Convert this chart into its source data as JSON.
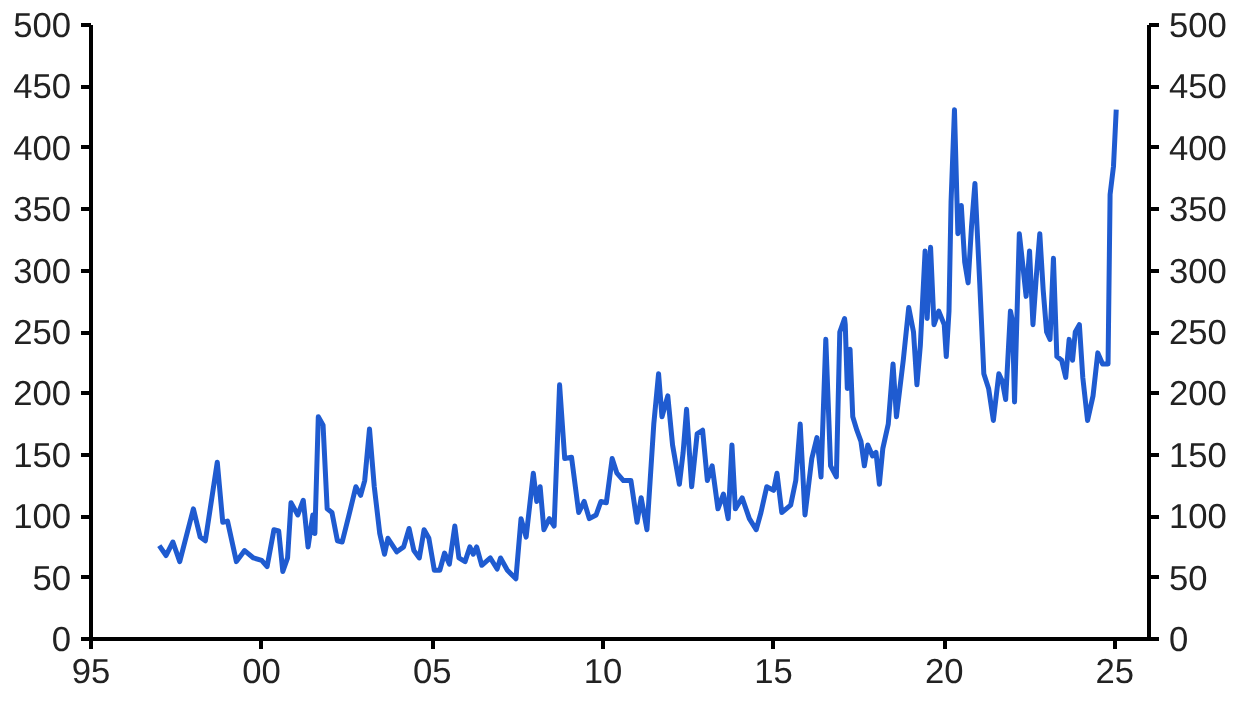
{
  "chart_data": {
    "type": "line",
    "color": "#1f5bd0",
    "x": [
      1997.0,
      1997.2,
      1997.4,
      1997.6,
      1998.0,
      1998.2,
      1998.35,
      1998.7,
      1998.86,
      1999.0,
      1999.26,
      1999.5,
      1999.76,
      2000.0,
      2000.16,
      2000.36,
      2000.5,
      2000.62,
      2000.76,
      2000.86,
      2001.06,
      2001.22,
      2001.36,
      2001.5,
      2001.56,
      2001.66,
      2001.8,
      2001.92,
      2002.06,
      2002.22,
      2002.36,
      2002.56,
      2002.76,
      2002.9,
      2003.02,
      2003.16,
      2003.3,
      2003.46,
      2003.6,
      2003.7,
      2003.96,
      2004.16,
      2004.32,
      2004.46,
      2004.62,
      2004.76,
      2004.9,
      2005.06,
      2005.22,
      2005.36,
      2005.5,
      2005.66,
      2005.78,
      2005.96,
      2006.1,
      2006.2,
      2006.3,
      2006.45,
      2006.7,
      2006.9,
      2007.0,
      2007.2,
      2007.45,
      2007.6,
      2007.75,
      2007.96,
      2008.06,
      2008.16,
      2008.27,
      2008.43,
      2008.57,
      2008.73,
      2008.88,
      2009.08,
      2009.29,
      2009.45,
      2009.6,
      2009.8,
      2009.94,
      2010.1,
      2010.27,
      2010.41,
      2010.6,
      2010.82,
      2011.0,
      2011.12,
      2011.29,
      2011.49,
      2011.63,
      2011.73,
      2011.9,
      2012.04,
      2012.24,
      2012.35,
      2012.45,
      2012.6,
      2012.76,
      2012.92,
      2013.06,
      2013.2,
      2013.37,
      2013.53,
      2013.67,
      2013.78,
      2013.88,
      2014.08,
      2014.29,
      2014.49,
      2014.63,
      2014.8,
      2015.0,
      2015.1,
      2015.24,
      2015.5,
      2015.65,
      2015.78,
      2015.92,
      2016.12,
      2016.27,
      2016.39,
      2016.53,
      2016.67,
      2016.84,
      2016.94,
      2017.08,
      2017.1,
      2017.16,
      2017.24,
      2017.32,
      2017.44,
      2017.56,
      2017.66,
      2017.76,
      2017.9,
      2018.0,
      2018.1,
      2018.2,
      2018.36,
      2018.5,
      2018.6,
      2018.7,
      2018.8,
      2018.96,
      2019.1,
      2019.2,
      2019.3,
      2019.44,
      2019.5,
      2019.6,
      2019.7,
      2019.84,
      2020.0,
      2020.06,
      2020.14,
      2020.2,
      2020.3,
      2020.4,
      2020.5,
      2020.6,
      2020.7,
      2020.8,
      2020.9,
      2021.04,
      2021.16,
      2021.3,
      2021.44,
      2021.6,
      2021.7,
      2021.8,
      2021.94,
      2022.0,
      2022.06,
      2022.2,
      2022.3,
      2022.4,
      2022.5,
      2022.6,
      2022.7,
      2022.8,
      2022.9,
      2023.0,
      2023.1,
      2023.2,
      2023.3,
      2023.44,
      2023.56,
      2023.66,
      2023.76,
      2023.84,
      2023.96,
      2024.06,
      2024.2,
      2024.36,
      2024.5,
      2024.64,
      2024.8,
      2024.86,
      2024.96,
      2025.04
    ],
    "values": [
      76,
      68,
      79,
      63,
      106,
      83,
      80,
      144,
      95,
      96,
      63,
      72,
      66,
      64,
      59,
      89,
      88,
      55,
      66,
      111,
      101,
      113,
      75,
      101,
      86,
      181,
      174,
      106,
      103,
      80,
      79,
      101,
      124,
      117,
      129,
      171,
      124,
      86,
      69,
      82,
      71,
      75,
      90,
      72,
      66,
      89,
      82,
      56,
      56,
      70,
      61,
      92,
      66,
      63,
      75,
      69,
      75,
      60,
      66,
      57,
      66,
      56,
      49,
      98,
      83,
      135,
      112,
      124,
      89,
      98,
      92,
      207,
      147,
      148,
      103,
      112,
      98,
      101,
      112,
      111,
      147,
      135,
      129,
      129,
      95,
      115,
      89,
      175,
      216,
      181,
      198,
      158,
      126,
      152,
      187,
      124,
      167,
      170,
      129,
      141,
      106,
      118,
      98,
      158,
      106,
      115,
      98,
      89,
      103,
      124,
      121,
      135,
      103,
      109,
      129,
      175,
      101,
      147,
      164,
      132,
      244,
      141,
      132,
      250,
      261,
      256,
      204,
      236,
      181,
      170,
      161,
      141,
      158,
      149,
      152,
      126,
      155,
      175,
      224,
      181,
      204,
      227,
      270,
      250,
      207,
      239,
      316,
      261,
      319,
      256,
      267,
      256,
      230,
      267,
      356,
      431,
      330,
      353,
      307,
      290,
      336,
      371,
      290,
      216,
      204,
      178,
      216,
      210,
      195,
      267,
      259,
      193,
      330,
      305,
      279,
      316,
      256,
      296,
      330,
      284,
      250,
      244,
      310,
      230,
      227,
      213,
      244,
      227,
      250,
      256,
      213,
      178,
      198,
      233,
      224,
      224,
      362,
      385,
      431
    ],
    "xlim": [
      1995,
      2026
    ],
    "xticks": [
      {
        "value": 1995,
        "label": "95"
      },
      {
        "value": 2000,
        "label": "00"
      },
      {
        "value": 2005,
        "label": "05"
      },
      {
        "value": 2010,
        "label": "10"
      },
      {
        "value": 2015,
        "label": "15"
      },
      {
        "value": 2020,
        "label": "20"
      },
      {
        "value": 2025,
        "label": "25"
      }
    ],
    "ylim": [
      0,
      500
    ],
    "yticks": [
      0,
      50,
      100,
      150,
      200,
      250,
      300,
      350,
      400,
      450,
      500
    ],
    "y2lim": [
      0,
      500
    ],
    "y2ticks": [
      0,
      50,
      100,
      150,
      200,
      250,
      300,
      350,
      400,
      450,
      500
    ],
    "grid": false,
    "marker": "none",
    "line_style": "solid"
  }
}
